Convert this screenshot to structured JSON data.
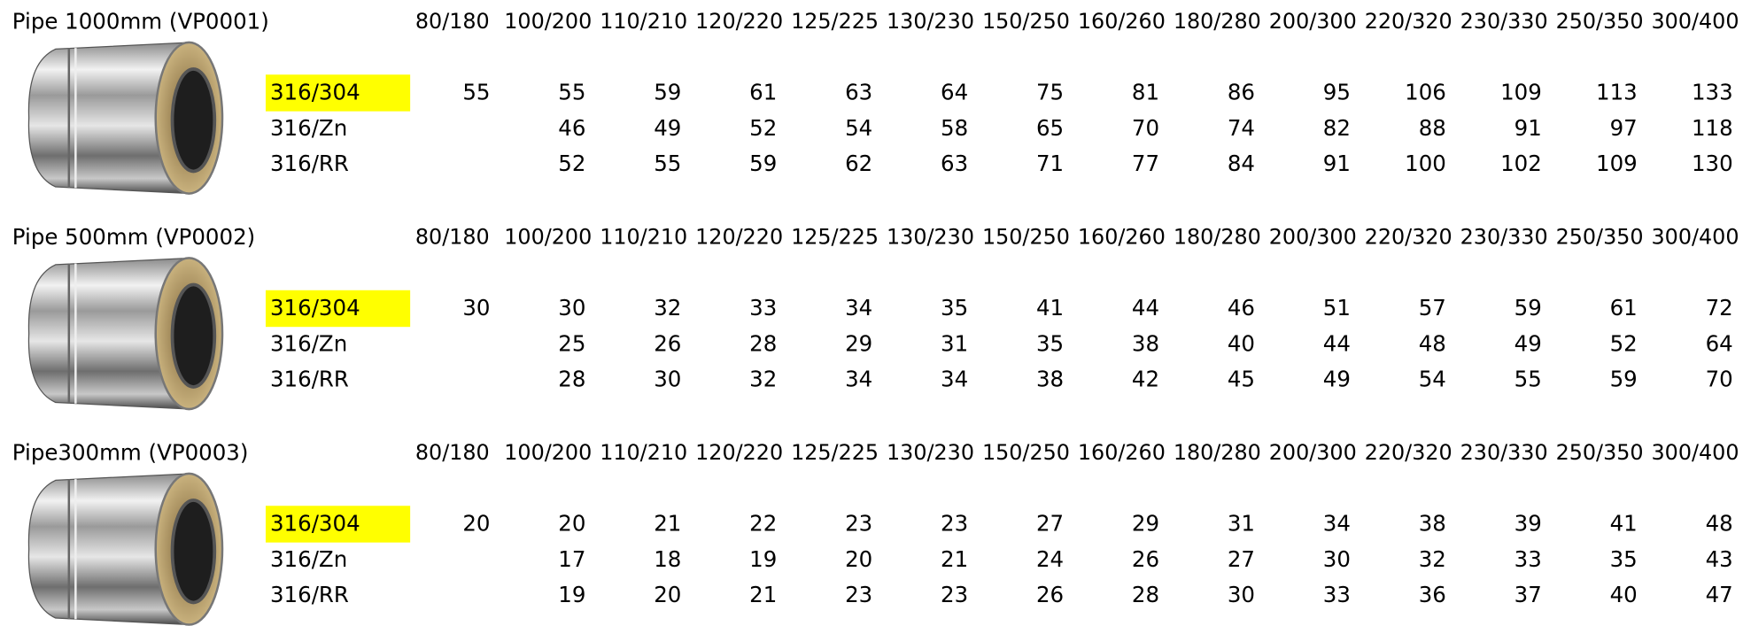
{
  "sections": [
    {
      "title": "Pipe 1000mm (VP0001)",
      "columns": [
        "80/180",
        "100/200",
        "110/210",
        "120/220",
        "125/225",
        "130/230",
        "150/250",
        "160/260",
        "180/280",
        "200/300",
        "220/320",
        "230/330",
        "250/350",
        "300/400"
      ],
      "rows": [
        {
          "label": "316/304",
          "values": [
            55,
            55,
            59,
            61,
            63,
            64,
            75,
            81,
            86,
            95,
            106,
            109,
            113,
            133
          ]
        },
        {
          "label": "316/Zn",
          "values": [
            null,
            46,
            49,
            52,
            54,
            58,
            65,
            70,
            74,
            82,
            88,
            91,
            97,
            118
          ]
        },
        {
          "label": "316/RR",
          "values": [
            null,
            52,
            55,
            59,
            62,
            63,
            71,
            77,
            84,
            91,
            100,
            102,
            109,
            130
          ]
        }
      ]
    },
    {
      "title": "Pipe 500mm (VP0002)",
      "columns": [
        "80/180",
        "100/200",
        "110/210",
        "120/220",
        "125/225",
        "130/230",
        "150/250",
        "160/260",
        "180/280",
        "200/300",
        "220/320",
        "230/330",
        "250/350",
        "300/400"
      ],
      "rows": [
        {
          "label": "316/304",
          "values": [
            30,
            30,
            32,
            33,
            34,
            35,
            41,
            44,
            46,
            51,
            57,
            59,
            61,
            72
          ]
        },
        {
          "label": "316/Zn",
          "values": [
            null,
            25,
            26,
            28,
            29,
            31,
            35,
            38,
            40,
            44,
            48,
            49,
            52,
            64
          ]
        },
        {
          "label": "316/RR",
          "values": [
            null,
            28,
            30,
            32,
            34,
            34,
            38,
            42,
            45,
            49,
            54,
            55,
            59,
            70
          ]
        }
      ]
    },
    {
      "title": "Pipe300mm (VP0003)",
      "columns": [
        "80/180",
        "100/200",
        "110/210",
        "120/220",
        "125/225",
        "130/230",
        "150/250",
        "160/260",
        "180/280",
        "200/300",
        "220/320",
        "230/330",
        "250/350",
        "300/400"
      ],
      "rows": [
        {
          "label": "316/304",
          "values": [
            20,
            20,
            21,
            22,
            23,
            23,
            27,
            29,
            31,
            34,
            38,
            39,
            41,
            48
          ]
        },
        {
          "label": "316/Zn",
          "values": [
            null,
            17,
            18,
            19,
            20,
            21,
            24,
            26,
            27,
            30,
            32,
            33,
            35,
            43
          ]
        },
        {
          "label": "316/RR",
          "values": [
            null,
            19,
            20,
            21,
            23,
            23,
            26,
            28,
            30,
            33,
            36,
            37,
            40,
            47
          ]
        }
      ]
    }
  ]
}
